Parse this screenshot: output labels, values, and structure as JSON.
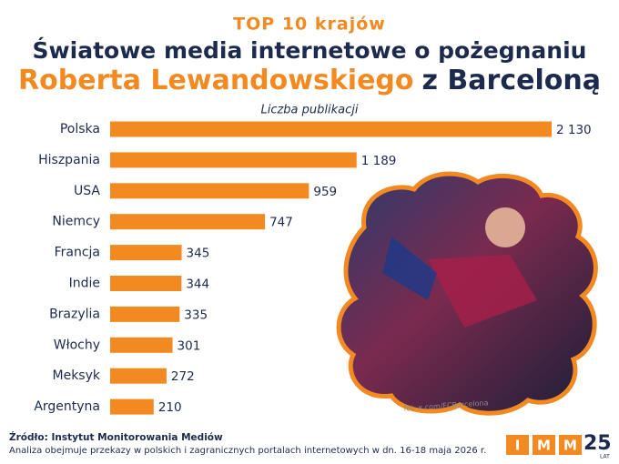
{
  "chart_data": {
    "type": "bar",
    "orientation": "horizontal",
    "supertitle": "TOP 10 krajów",
    "title": "Światowe media internetowe o pożegnaniu",
    "title_highlight": "Roberta Lewandowskiego",
    "title_rest": "z Barceloną",
    "xlabel": "Liczba publikacji",
    "categories": [
      "Polska",
      "Hiszpania",
      "USA",
      "Niemcy",
      "Francja",
      "Indie",
      "Brazylia",
      "Włochy",
      "Meksyk",
      "Argentyna"
    ],
    "values": [
      2130,
      1189,
      959,
      747,
      345,
      344,
      335,
      301,
      272,
      210
    ],
    "value_labels": [
      "2 130",
      "1 189",
      "959",
      "747",
      "345",
      "344",
      "335",
      "301",
      "272",
      "210"
    ],
    "color": "#f28a21"
  },
  "photo_credit": "fot. x.com/FCBarcelona",
  "source": "Źródło: Instytut Monitorowania Mediów",
  "note": "Analiza obejmuje przekazy w polskich i zagranicznych portalach internetowych w dn. 16-18 maja 2026 r.",
  "logo": {
    "letters": [
      "I",
      "M",
      "M"
    ],
    "years": "25",
    "suffix": "LAT"
  }
}
